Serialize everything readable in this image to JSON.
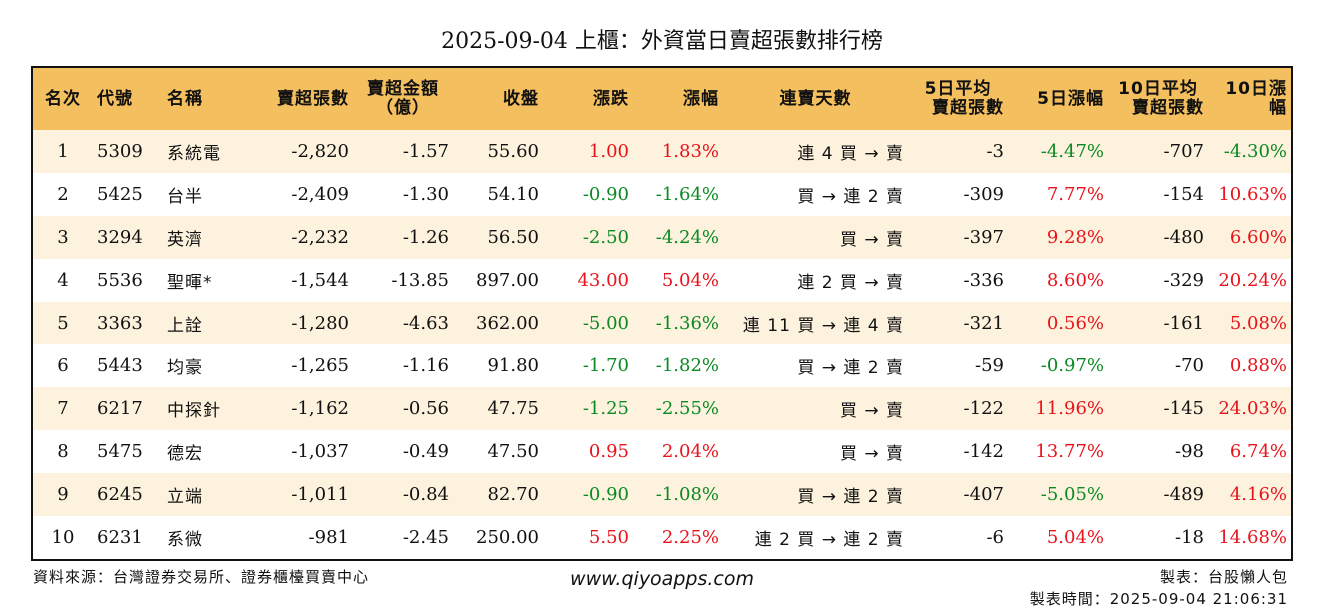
{
  "title": "2025-09-04 上櫃：外資當日賣超張數排行榜",
  "colors": {
    "header_bg": "#f4bf5e",
    "stripe": "#fdf2dd",
    "up": "#e8141c",
    "down": "#0b8a24"
  },
  "headers": {
    "rank": "名次",
    "code": "代號",
    "name": "名稱",
    "net_sell": "賣超張數",
    "amount_l1": "賣超金額",
    "amount_l2": "（億）",
    "close": "收盤",
    "change": "漲跌",
    "pct": "漲幅",
    "streak": "連賣天數",
    "avg5_l1": "5日平均",
    "avg5_l2": "賣超張數",
    "pct5": "5日漲幅",
    "avg10_l1": "10日平均",
    "avg10_l2": "賣超張數",
    "pct10": "10日漲幅"
  },
  "rows": [
    {
      "rank": "1",
      "code": "5309",
      "name": "系統電",
      "net_sell": "-2,820",
      "amount": "-1.57",
      "close": "55.60",
      "change": "1.00",
      "change_dir": "up",
      "pct": "1.83%",
      "pct_dir": "up",
      "streak": "連 4 買 → 賣",
      "avg5": "-3",
      "pct5": "-4.47%",
      "pct5_dir": "down",
      "avg10": "-707",
      "pct10": "-4.30%",
      "pct10_dir": "down"
    },
    {
      "rank": "2",
      "code": "5425",
      "name": "台半",
      "net_sell": "-2,409",
      "amount": "-1.30",
      "close": "54.10",
      "change": "-0.90",
      "change_dir": "down",
      "pct": "-1.64%",
      "pct_dir": "down",
      "streak": "買 → 連 2 賣",
      "avg5": "-309",
      "pct5": "7.77%",
      "pct5_dir": "up",
      "avg10": "-154",
      "pct10": "10.63%",
      "pct10_dir": "up"
    },
    {
      "rank": "3",
      "code": "3294",
      "name": "英濟",
      "net_sell": "-2,232",
      "amount": "-1.26",
      "close": "56.50",
      "change": "-2.50",
      "change_dir": "down",
      "pct": "-4.24%",
      "pct_dir": "down",
      "streak": "買 → 賣",
      "avg5": "-397",
      "pct5": "9.28%",
      "pct5_dir": "up",
      "avg10": "-480",
      "pct10": "6.60%",
      "pct10_dir": "up"
    },
    {
      "rank": "4",
      "code": "5536",
      "name": "聖暉*",
      "net_sell": "-1,544",
      "amount": "-13.85",
      "close": "897.00",
      "change": "43.00",
      "change_dir": "up",
      "pct": "5.04%",
      "pct_dir": "up",
      "streak": "連 2 買 → 賣",
      "avg5": "-336",
      "pct5": "8.60%",
      "pct5_dir": "up",
      "avg10": "-329",
      "pct10": "20.24%",
      "pct10_dir": "up"
    },
    {
      "rank": "5",
      "code": "3363",
      "name": "上詮",
      "net_sell": "-1,280",
      "amount": "-4.63",
      "close": "362.00",
      "change": "-5.00",
      "change_dir": "down",
      "pct": "-1.36%",
      "pct_dir": "down",
      "streak": "連 11 買 → 連 4 賣",
      "avg5": "-321",
      "pct5": "0.56%",
      "pct5_dir": "up",
      "avg10": "-161",
      "pct10": "5.08%",
      "pct10_dir": "up"
    },
    {
      "rank": "6",
      "code": "5443",
      "name": "均豪",
      "net_sell": "-1,265",
      "amount": "-1.16",
      "close": "91.80",
      "change": "-1.70",
      "change_dir": "down",
      "pct": "-1.82%",
      "pct_dir": "down",
      "streak": "買 → 連 2 賣",
      "avg5": "-59",
      "pct5": "-0.97%",
      "pct5_dir": "down",
      "avg10": "-70",
      "pct10": "0.88%",
      "pct10_dir": "up"
    },
    {
      "rank": "7",
      "code": "6217",
      "name": "中探針",
      "net_sell": "-1,162",
      "amount": "-0.56",
      "close": "47.75",
      "change": "-1.25",
      "change_dir": "down",
      "pct": "-2.55%",
      "pct_dir": "down",
      "streak": "買 → 賣",
      "avg5": "-122",
      "pct5": "11.96%",
      "pct5_dir": "up",
      "avg10": "-145",
      "pct10": "24.03%",
      "pct10_dir": "up"
    },
    {
      "rank": "8",
      "code": "5475",
      "name": "德宏",
      "net_sell": "-1,037",
      "amount": "-0.49",
      "close": "47.50",
      "change": "0.95",
      "change_dir": "up",
      "pct": "2.04%",
      "pct_dir": "up",
      "streak": "買 → 賣",
      "avg5": "-142",
      "pct5": "13.77%",
      "pct5_dir": "up",
      "avg10": "-98",
      "pct10": "6.74%",
      "pct10_dir": "up"
    },
    {
      "rank": "9",
      "code": "6245",
      "name": "立端",
      "net_sell": "-1,011",
      "amount": "-0.84",
      "close": "82.70",
      "change": "-0.90",
      "change_dir": "down",
      "pct": "-1.08%",
      "pct_dir": "down",
      "streak": "買 → 連 2 賣",
      "avg5": "-407",
      "pct5": "-5.05%",
      "pct5_dir": "down",
      "avg10": "-489",
      "pct10": "4.16%",
      "pct10_dir": "up"
    },
    {
      "rank": "10",
      "code": "6231",
      "name": "系微",
      "net_sell": "-981",
      "amount": "-2.45",
      "close": "250.00",
      "change": "5.50",
      "change_dir": "up",
      "pct": "2.25%",
      "pct_dir": "up",
      "streak": "連 2 買 → 連 2 賣",
      "avg5": "-6",
      "pct5": "5.04%",
      "pct5_dir": "up",
      "avg10": "-18",
      "pct10": "14.68%",
      "pct10_dir": "up"
    }
  ],
  "footer": {
    "source": "資料來源：台灣證券交易所、證券櫃檯買賣中心",
    "site": "www.qiyoapps.com",
    "maker": "製表：台股懶人包",
    "made_time": "製表時間：2025-09-04 21:06:31"
  }
}
